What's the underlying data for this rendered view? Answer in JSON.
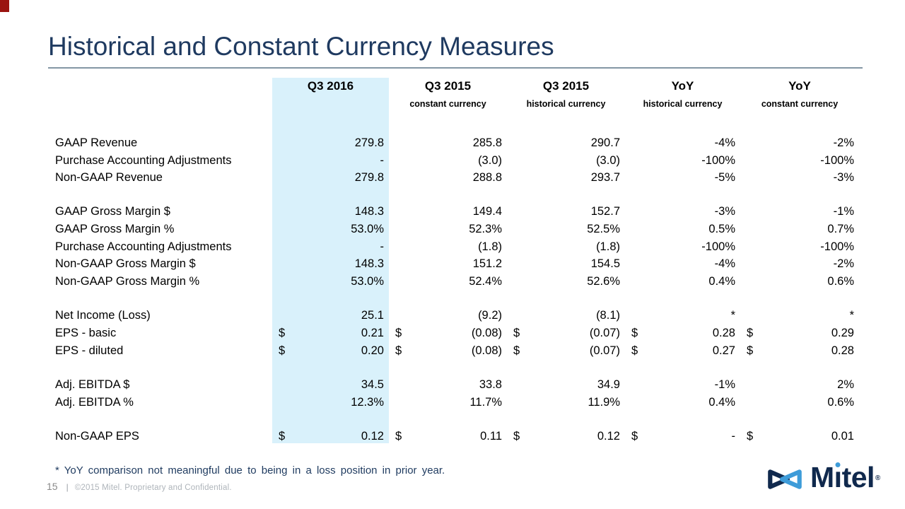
{
  "slide": {
    "title": "Historical and Constant Currency Measures",
    "footnote": "* YoY comparison not meaningful due to being in a loss position in prior year.",
    "page_number": "15",
    "footer_separator": "|",
    "copyright": "©2015 Mitel. Proprietary and Confidential.",
    "logo": {
      "text_m": "M",
      "text_i": "ı",
      "text_tel": "tel",
      "registered": "®",
      "mark": "mitel-infinity-logo-icon"
    }
  },
  "colors": {
    "title_navy": "#1f3a60",
    "rule_gray": "#8496a4",
    "highlight_blue": "#d9f1fb",
    "footnote_navy": "#1e3a5f",
    "page_gray": "#8a8a8a",
    "copyright_gray": "#aeb4ba",
    "logo_navy": "#10294d",
    "logo_light_blue": "#3e9cd9",
    "corner_red": "#9b1410",
    "table_text": "#000000"
  },
  "table": {
    "columns": [
      {
        "line1": "Q3 2016",
        "line2": ""
      },
      {
        "line1": "Q3 2015",
        "line2": "constant currency"
      },
      {
        "line1": "Q3 2015",
        "line2": "historical currency"
      },
      {
        "line1": "YoY",
        "line2": "historical currency"
      },
      {
        "line1": "YoY",
        "line2": "constant currency"
      }
    ],
    "groups": [
      {
        "rows": [
          {
            "label": "GAAP Revenue",
            "cells": [
              {
                "d": "",
                "v": "279.8"
              },
              {
                "d": "",
                "v": "285.8"
              },
              {
                "d": "",
                "v": "290.7"
              },
              {
                "d": "",
                "v": "-4%"
              },
              {
                "d": "",
                "v": "-2%"
              }
            ]
          },
          {
            "label": "Purchase Accounting Adjustments",
            "cells": [
              {
                "d": "",
                "v": "-"
              },
              {
                "d": "",
                "v": "(3.0)"
              },
              {
                "d": "",
                "v": "(3.0)"
              },
              {
                "d": "",
                "v": "-100%"
              },
              {
                "d": "",
                "v": "-100%"
              }
            ]
          },
          {
            "label": "Non-GAAP Revenue",
            "cells": [
              {
                "d": "",
                "v": "279.8"
              },
              {
                "d": "",
                "v": "288.8"
              },
              {
                "d": "",
                "v": "293.7"
              },
              {
                "d": "",
                "v": "-5%"
              },
              {
                "d": "",
                "v": "-3%"
              }
            ]
          }
        ]
      },
      {
        "rows": [
          {
            "label": "GAAP Gross Margin $",
            "cells": [
              {
                "d": "",
                "v": "148.3"
              },
              {
                "d": "",
                "v": "149.4"
              },
              {
                "d": "",
                "v": "152.7"
              },
              {
                "d": "",
                "v": "-3%"
              },
              {
                "d": "",
                "v": "-1%"
              }
            ]
          },
          {
            "label": "GAAP Gross Margin %",
            "cells": [
              {
                "d": "",
                "v": "53.0%"
              },
              {
                "d": "",
                "v": "52.3%"
              },
              {
                "d": "",
                "v": "52.5%"
              },
              {
                "d": "",
                "v": "0.5%"
              },
              {
                "d": "",
                "v": "0.7%"
              }
            ]
          },
          {
            "label": "Purchase Accounting Adjustments",
            "cells": [
              {
                "d": "",
                "v": "-"
              },
              {
                "d": "",
                "v": "(1.8)"
              },
              {
                "d": "",
                "v": "(1.8)"
              },
              {
                "d": "",
                "v": "-100%"
              },
              {
                "d": "",
                "v": "-100%"
              }
            ]
          },
          {
            "label": "Non-GAAP Gross Margin $",
            "cells": [
              {
                "d": "",
                "v": "148.3"
              },
              {
                "d": "",
                "v": "151.2"
              },
              {
                "d": "",
                "v": "154.5"
              },
              {
                "d": "",
                "v": "-4%"
              },
              {
                "d": "",
                "v": "-2%"
              }
            ]
          },
          {
            "label": "Non-GAAP Gross Margin %",
            "cells": [
              {
                "d": "",
                "v": "53.0%"
              },
              {
                "d": "",
                "v": "52.4%"
              },
              {
                "d": "",
                "v": "52.6%"
              },
              {
                "d": "",
                "v": "0.4%"
              },
              {
                "d": "",
                "v": "0.6%"
              }
            ]
          }
        ]
      },
      {
        "rows": [
          {
            "label": "Net Income (Loss)",
            "cells": [
              {
                "d": "",
                "v": "25.1"
              },
              {
                "d": "",
                "v": "(9.2)"
              },
              {
                "d": "",
                "v": "(8.1)"
              },
              {
                "d": "",
                "v": "*"
              },
              {
                "d": "",
                "v": "*"
              }
            ]
          },
          {
            "label": "EPS - basic",
            "cells": [
              {
                "d": "$",
                "v": "0.21"
              },
              {
                "d": "$",
                "v": "(0.08)"
              },
              {
                "d": "$",
                "v": "(0.07)"
              },
              {
                "d": "$",
                "v": "0.28"
              },
              {
                "d": "$",
                "v": "0.29"
              }
            ]
          },
          {
            "label": "EPS - diluted",
            "cells": [
              {
                "d": "$",
                "v": "0.20"
              },
              {
                "d": "$",
                "v": "(0.08)"
              },
              {
                "d": "$",
                "v": "(0.07)"
              },
              {
                "d": "$",
                "v": "0.27"
              },
              {
                "d": "$",
                "v": "0.28"
              }
            ]
          }
        ]
      },
      {
        "rows": [
          {
            "label": "Adj. EBITDA $",
            "cells": [
              {
                "d": "",
                "v": "34.5"
              },
              {
                "d": "",
                "v": "33.8"
              },
              {
                "d": "",
                "v": "34.9"
              },
              {
                "d": "",
                "v": "-1%"
              },
              {
                "d": "",
                "v": "2%"
              }
            ]
          },
          {
            "label": "Adj. EBITDA %",
            "cells": [
              {
                "d": "",
                "v": "12.3%"
              },
              {
                "d": "",
                "v": "11.7%"
              },
              {
                "d": "",
                "v": "11.9%"
              },
              {
                "d": "",
                "v": "0.4%"
              },
              {
                "d": "",
                "v": "0.6%"
              }
            ]
          }
        ]
      },
      {
        "rows": [
          {
            "label": "Non-GAAP EPS",
            "cells": [
              {
                "d": "$",
                "v": "0.12"
              },
              {
                "d": "$",
                "v": "0.11"
              },
              {
                "d": "$",
                "v": "0.12"
              },
              {
                "d": "$",
                "v": "-"
              },
              {
                "d": "$",
                "v": "0.01"
              }
            ]
          }
        ]
      }
    ]
  }
}
